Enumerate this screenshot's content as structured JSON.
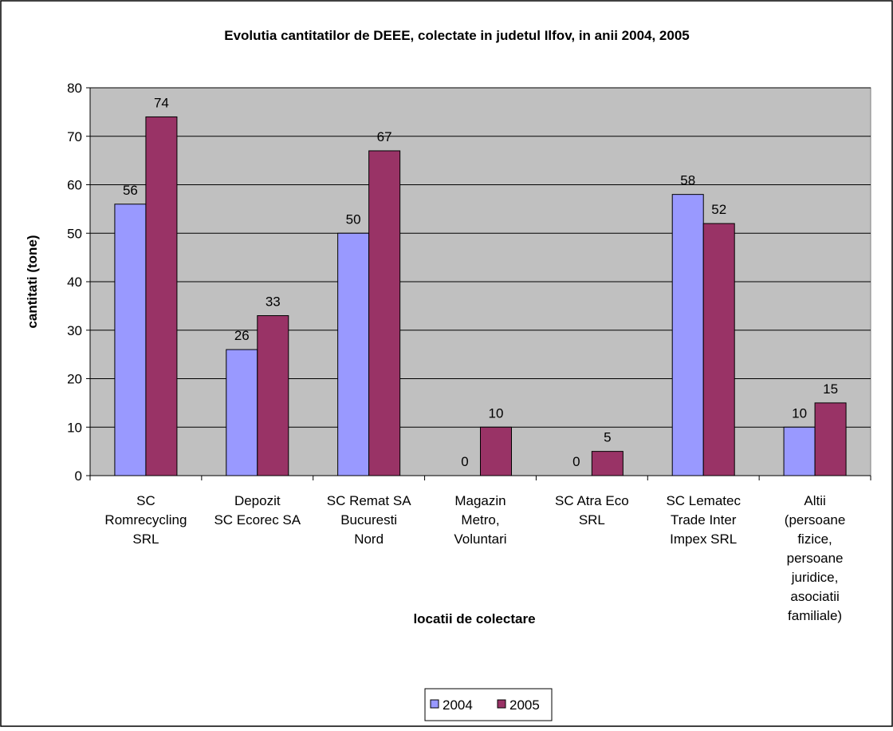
{
  "chart_data": {
    "type": "bar",
    "title": "Evolutia cantitatilor de DEEE, colectate in judetul Ilfov, in anii 2004, 2005",
    "xlabel": "locatii de colectare",
    "ylabel": "cantitati (tone)",
    "ylim": [
      0,
      80
    ],
    "yticks": [
      "0",
      "10",
      "20",
      "30",
      "40",
      "50",
      "60",
      "70",
      "80"
    ],
    "grid": true,
    "legend_position": "bottom",
    "categories": [
      [
        "SC",
        "Romrecycling",
        "SRL"
      ],
      [
        "Depozit",
        "SC Ecorec SA"
      ],
      [
        "SC Remat SA",
        "Bucuresti",
        "Nord"
      ],
      [
        "Magazin",
        "Metro,",
        "Voluntari"
      ],
      [
        "SC Atra Eco",
        "SRL"
      ],
      [
        "SC Lematec",
        "Trade Inter",
        "Impex SRL"
      ],
      [
        "Altii",
        "(persoane",
        "fizice,",
        "persoane",
        "juridice,",
        "asociatii",
        "familiale)"
      ]
    ],
    "series": [
      {
        "name": "2004",
        "color": "#9999ff",
        "values": [
          56,
          26,
          50,
          0,
          0,
          58,
          10
        ],
        "labels": [
          "56",
          "26",
          "50",
          "0",
          "0",
          "58",
          "10"
        ]
      },
      {
        "name": "2005",
        "color": "#993366",
        "values": [
          74,
          33,
          67,
          10,
          5,
          52,
          15
        ],
        "labels": [
          "74",
          "33",
          "67",
          "10",
          "5",
          "52",
          "15"
        ]
      }
    ]
  }
}
